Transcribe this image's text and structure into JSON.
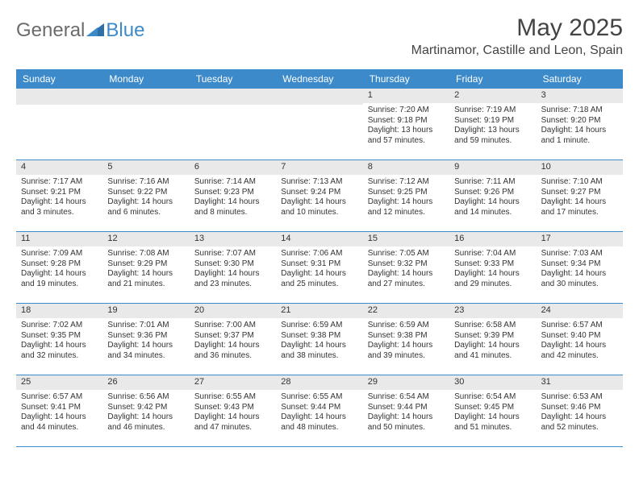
{
  "brand": {
    "general": "General",
    "blue": "Blue"
  },
  "title": "May 2025",
  "location": "Martinamor, Castille and Leon, Spain",
  "colors": {
    "accent": "#3c8ac9",
    "header_bg": "#3c8ac9",
    "header_text": "#ffffff",
    "daynum_bg": "#e9e9e9",
    "text": "#333333",
    "page_bg": "#ffffff"
  },
  "typography": {
    "title_fontsize": 30,
    "location_fontsize": 16,
    "header_fontsize": 12,
    "cell_fontsize": 10
  },
  "day_names": [
    "Sunday",
    "Monday",
    "Tuesday",
    "Wednesday",
    "Thursday",
    "Friday",
    "Saturday"
  ],
  "weeks": [
    [
      null,
      null,
      null,
      null,
      {
        "n": "1",
        "sr": "Sunrise: 7:20 AM",
        "ss": "Sunset: 9:18 PM",
        "d1": "Daylight: 13 hours",
        "d2": "and 57 minutes."
      },
      {
        "n": "2",
        "sr": "Sunrise: 7:19 AM",
        "ss": "Sunset: 9:19 PM",
        "d1": "Daylight: 13 hours",
        "d2": "and 59 minutes."
      },
      {
        "n": "3",
        "sr": "Sunrise: 7:18 AM",
        "ss": "Sunset: 9:20 PM",
        "d1": "Daylight: 14 hours",
        "d2": "and 1 minute."
      }
    ],
    [
      {
        "n": "4",
        "sr": "Sunrise: 7:17 AM",
        "ss": "Sunset: 9:21 PM",
        "d1": "Daylight: 14 hours",
        "d2": "and 3 minutes."
      },
      {
        "n": "5",
        "sr": "Sunrise: 7:16 AM",
        "ss": "Sunset: 9:22 PM",
        "d1": "Daylight: 14 hours",
        "d2": "and 6 minutes."
      },
      {
        "n": "6",
        "sr": "Sunrise: 7:14 AM",
        "ss": "Sunset: 9:23 PM",
        "d1": "Daylight: 14 hours",
        "d2": "and 8 minutes."
      },
      {
        "n": "7",
        "sr": "Sunrise: 7:13 AM",
        "ss": "Sunset: 9:24 PM",
        "d1": "Daylight: 14 hours",
        "d2": "and 10 minutes."
      },
      {
        "n": "8",
        "sr": "Sunrise: 7:12 AM",
        "ss": "Sunset: 9:25 PM",
        "d1": "Daylight: 14 hours",
        "d2": "and 12 minutes."
      },
      {
        "n": "9",
        "sr": "Sunrise: 7:11 AM",
        "ss": "Sunset: 9:26 PM",
        "d1": "Daylight: 14 hours",
        "d2": "and 14 minutes."
      },
      {
        "n": "10",
        "sr": "Sunrise: 7:10 AM",
        "ss": "Sunset: 9:27 PM",
        "d1": "Daylight: 14 hours",
        "d2": "and 17 minutes."
      }
    ],
    [
      {
        "n": "11",
        "sr": "Sunrise: 7:09 AM",
        "ss": "Sunset: 9:28 PM",
        "d1": "Daylight: 14 hours",
        "d2": "and 19 minutes."
      },
      {
        "n": "12",
        "sr": "Sunrise: 7:08 AM",
        "ss": "Sunset: 9:29 PM",
        "d1": "Daylight: 14 hours",
        "d2": "and 21 minutes."
      },
      {
        "n": "13",
        "sr": "Sunrise: 7:07 AM",
        "ss": "Sunset: 9:30 PM",
        "d1": "Daylight: 14 hours",
        "d2": "and 23 minutes."
      },
      {
        "n": "14",
        "sr": "Sunrise: 7:06 AM",
        "ss": "Sunset: 9:31 PM",
        "d1": "Daylight: 14 hours",
        "d2": "and 25 minutes."
      },
      {
        "n": "15",
        "sr": "Sunrise: 7:05 AM",
        "ss": "Sunset: 9:32 PM",
        "d1": "Daylight: 14 hours",
        "d2": "and 27 minutes."
      },
      {
        "n": "16",
        "sr": "Sunrise: 7:04 AM",
        "ss": "Sunset: 9:33 PM",
        "d1": "Daylight: 14 hours",
        "d2": "and 29 minutes."
      },
      {
        "n": "17",
        "sr": "Sunrise: 7:03 AM",
        "ss": "Sunset: 9:34 PM",
        "d1": "Daylight: 14 hours",
        "d2": "and 30 minutes."
      }
    ],
    [
      {
        "n": "18",
        "sr": "Sunrise: 7:02 AM",
        "ss": "Sunset: 9:35 PM",
        "d1": "Daylight: 14 hours",
        "d2": "and 32 minutes."
      },
      {
        "n": "19",
        "sr": "Sunrise: 7:01 AM",
        "ss": "Sunset: 9:36 PM",
        "d1": "Daylight: 14 hours",
        "d2": "and 34 minutes."
      },
      {
        "n": "20",
        "sr": "Sunrise: 7:00 AM",
        "ss": "Sunset: 9:37 PM",
        "d1": "Daylight: 14 hours",
        "d2": "and 36 minutes."
      },
      {
        "n": "21",
        "sr": "Sunrise: 6:59 AM",
        "ss": "Sunset: 9:38 PM",
        "d1": "Daylight: 14 hours",
        "d2": "and 38 minutes."
      },
      {
        "n": "22",
        "sr": "Sunrise: 6:59 AM",
        "ss": "Sunset: 9:38 PM",
        "d1": "Daylight: 14 hours",
        "d2": "and 39 minutes."
      },
      {
        "n": "23",
        "sr": "Sunrise: 6:58 AM",
        "ss": "Sunset: 9:39 PM",
        "d1": "Daylight: 14 hours",
        "d2": "and 41 minutes."
      },
      {
        "n": "24",
        "sr": "Sunrise: 6:57 AM",
        "ss": "Sunset: 9:40 PM",
        "d1": "Daylight: 14 hours",
        "d2": "and 42 minutes."
      }
    ],
    [
      {
        "n": "25",
        "sr": "Sunrise: 6:57 AM",
        "ss": "Sunset: 9:41 PM",
        "d1": "Daylight: 14 hours",
        "d2": "and 44 minutes."
      },
      {
        "n": "26",
        "sr": "Sunrise: 6:56 AM",
        "ss": "Sunset: 9:42 PM",
        "d1": "Daylight: 14 hours",
        "d2": "and 46 minutes."
      },
      {
        "n": "27",
        "sr": "Sunrise: 6:55 AM",
        "ss": "Sunset: 9:43 PM",
        "d1": "Daylight: 14 hours",
        "d2": "and 47 minutes."
      },
      {
        "n": "28",
        "sr": "Sunrise: 6:55 AM",
        "ss": "Sunset: 9:44 PM",
        "d1": "Daylight: 14 hours",
        "d2": "and 48 minutes."
      },
      {
        "n": "29",
        "sr": "Sunrise: 6:54 AM",
        "ss": "Sunset: 9:44 PM",
        "d1": "Daylight: 14 hours",
        "d2": "and 50 minutes."
      },
      {
        "n": "30",
        "sr": "Sunrise: 6:54 AM",
        "ss": "Sunset: 9:45 PM",
        "d1": "Daylight: 14 hours",
        "d2": "and 51 minutes."
      },
      {
        "n": "31",
        "sr": "Sunrise: 6:53 AM",
        "ss": "Sunset: 9:46 PM",
        "d1": "Daylight: 14 hours",
        "d2": "and 52 minutes."
      }
    ]
  ]
}
